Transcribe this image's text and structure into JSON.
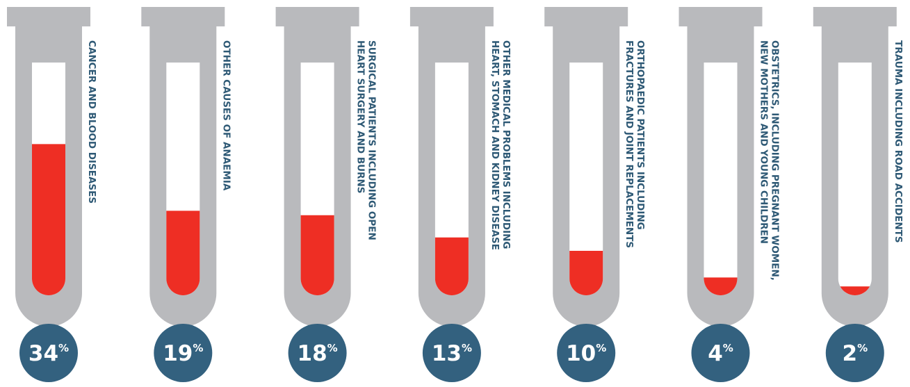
{
  "chart_data": {
    "type": "bar",
    "categories": [
      [
        "CANCER AND BLOOD DISEASES"
      ],
      [
        "OTHER CAUSES OF ANAEMIA"
      ],
      [
        "SURGICAL PATIENTS INCLUDING OPEN",
        "HEART SURGERY AND BURNS"
      ],
      [
        "OTHER MEDICAL PROBLEMS INCLUDING",
        "HEART, STOMACH AND KIDNEY DISEASE"
      ],
      [
        "ORTHOPAEDIC PATIENTS INCLUDING",
        "FRACTURES AND JOINT REPLACEMENTS"
      ],
      [
        "OBSTETRICS, INCLUDING PREGNANT WOMEN,",
        "NEW MOTHERS AND YOUNG CHILDREN"
      ],
      [
        "TRAUMA INCLUDING ROAD ACCIDENTS"
      ]
    ],
    "values": [
      34,
      19,
      18,
      13,
      10,
      4,
      2
    ],
    "value_labels": [
      "34",
      "19",
      "18",
      "13",
      "10",
      "4",
      "2"
    ],
    "unit_symbol": "%",
    "title": "",
    "xlabel": "",
    "ylabel": "",
    "ylim": [
      0,
      55
    ],
    "grid": false,
    "legend": "none",
    "colors": {
      "tube": "#b9babd",
      "fill": "#ee2e24",
      "label_text": "#2e5975",
      "badge": "#33617f",
      "badge_text": "#ffffff"
    }
  }
}
